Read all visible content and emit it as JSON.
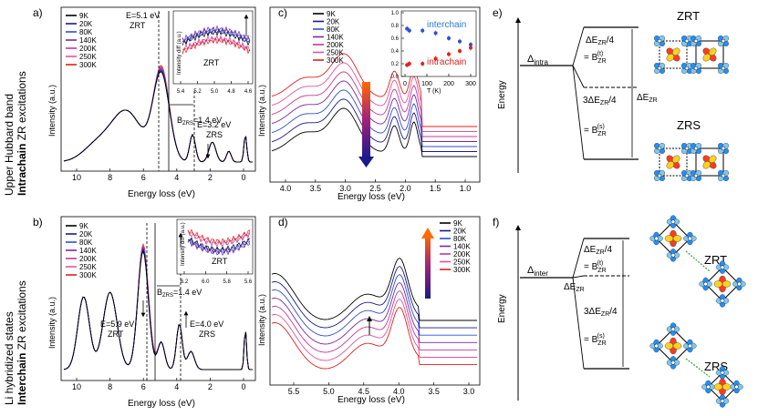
{
  "side_labels": {
    "top_line1": "Upper Hubbard band",
    "top_line2_bold": "Intrachain",
    "top_line2_rest": " ZR excitations",
    "bottom_line1": "Li hybridized states",
    "bottom_line2_bold": "Interchain",
    "bottom_line2_rest": " ZR excitations"
  },
  "panel_a": {
    "label": "a)",
    "ylabel": "Intensity (a.u.)",
    "xlabel": "Energy loss (eV)",
    "xticks": [
      "10",
      "8",
      "6",
      "4",
      "2",
      "0"
    ],
    "legend": [
      "9K",
      "20K",
      "80K",
      "140K",
      "200K",
      "250K",
      "300K"
    ],
    "ann_peak1": "E=5.1 eV",
    "ann_peak1b": "ZRT",
    "ann_peak2": "E=3.2 eV",
    "ann_peak2b": "ZRS",
    "ann_b": "B",
    "ann_b_sub": "ZRS",
    "ann_b_val": "=1.4 eV",
    "inset_label": "ZRT",
    "inset_ylabel": "Intensity diff (a.u.)",
    "inset_xticks": [
      "5.4",
      "5.2",
      "5.0",
      "4.8",
      "4.6"
    ]
  },
  "panel_b": {
    "label": "b)",
    "ylabel": "Intensity (a.u.)",
    "xlabel": "Energy loss (eV)",
    "xticks": [
      "10",
      "8",
      "6",
      "4",
      "2",
      "0"
    ],
    "legend": [
      "9K",
      "20K",
      "80K",
      "140K",
      "200K",
      "250K",
      "300K"
    ],
    "ann_peak1": "E=5.9 eV",
    "ann_peak1b": "ZRT",
    "ann_peak2": "E=4.0 eV",
    "ann_peak2b": "ZRS",
    "ann_b": "B",
    "ann_b_sub": "ZRS",
    "ann_b_val": "=1.4 eV",
    "inset_label": "ZRT",
    "inset_ylabel": "Intensity diff (a.u.)",
    "inset_xticks": [
      "6.2",
      "6.0",
      "5.8",
      "5.6"
    ]
  },
  "panel_c": {
    "label": "c)",
    "ylabel": "Intensity (a.u.)",
    "xlabel": "Energy loss (eV)",
    "xticks": [
      "4.0",
      "3.5",
      "3.0",
      "2.5",
      "2.0",
      "1.5",
      "1.0"
    ],
    "legend": [
      "9K",
      "20K",
      "80K",
      "140K",
      "200K",
      "250K",
      "300K"
    ],
    "inset_yticks": [
      "1.0",
      "0.8",
      "0.6",
      "0.4",
      "0.2",
      "0.0"
    ],
    "inset_xticks": [
      "0",
      "100",
      "200",
      "300"
    ],
    "inset_xlabel": "T (K)",
    "inset_inter": "interchain",
    "inset_intra": "intrachain"
  },
  "panel_d": {
    "label": "d)",
    "ylabel": "Intensity (a.u.)",
    "xlabel": "Energy loss (eV)",
    "xticks": [
      "5.5",
      "5.0",
      "4.5",
      "4.0",
      "3.5",
      "3.0"
    ],
    "legend": [
      "9K",
      "20K",
      "80K",
      "140K",
      "200K",
      "250K",
      "300K"
    ]
  },
  "panel_e": {
    "label": "e)",
    "energy": "Energy",
    "delta": "Δ",
    "delta_sub": "intra",
    "de4": "ΔE",
    "de4_sub": "ZR",
    "de4_tail": "/4",
    "eq": "= B",
    "eq_sub_t": "ZR",
    "eq_sup_t": "(t)",
    "three_de": "3ΔE",
    "three_de_sub": "ZR",
    "three_de_tail": "/4",
    "eq_sup_s": "(s)",
    "de_right": "ΔE",
    "de_right_sub": "ZR",
    "zrt": "ZRT",
    "zrs": "ZRS"
  },
  "panel_f": {
    "label": "f)",
    "energy": "Energy",
    "delta": "Δ",
    "delta_sub": "inter",
    "de4": "ΔE",
    "de4_sub": "ZR",
    "de4_tail": "/4",
    "eq": "= B",
    "eq_sub_t": "ZR",
    "eq_sup_t": "(t)",
    "three_de": "3ΔE",
    "three_de_sub": "ZR",
    "three_de_tail": "/4",
    "eq_sup_s": "(s)",
    "de_mid": "ΔE",
    "de_mid_sub": "ZR",
    "zrt": "ZRT",
    "zrs": "ZRS"
  },
  "colors": {
    "series": [
      "#000000",
      "#1a1a8c",
      "#2a4fd6",
      "#7a2a9a",
      "#c0399a",
      "#e0559a",
      "#e0201c"
    ]
  }
}
